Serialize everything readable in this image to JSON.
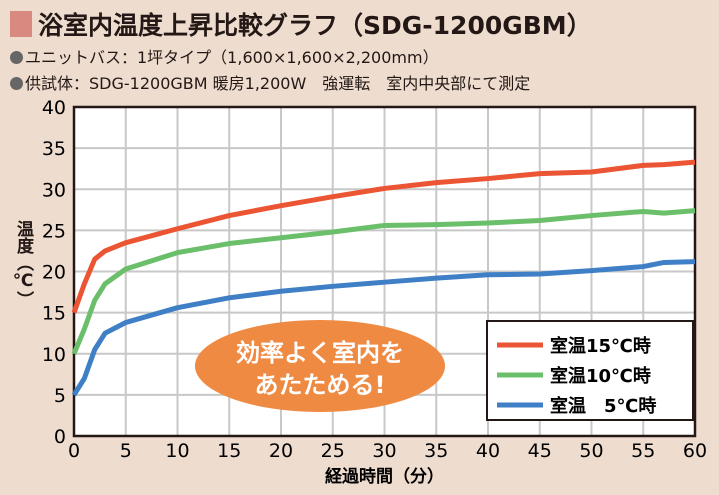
{
  "header": {
    "title": "浴室内温度上昇比較グラフ（SDG-1200GBM）",
    "specs": [
      "ユニットバス：1坪タイプ（1,600×1,600×2,200mm）",
      "供試体：SDG-1200GBM 暖房1,200W　強運転　室内中央部にて測定"
    ]
  },
  "callout": {
    "line1": "効率よく室内を",
    "line2": "あたためる!",
    "color": "#ef8a43"
  },
  "chart_data": {
    "type": "line",
    "xlabel": "経過時間（分）",
    "ylabel": "温度（℃）",
    "xlim": [
      0,
      60
    ],
    "ylim": [
      0,
      40
    ],
    "grid": true,
    "legend": "bottom-right",
    "xticks": [
      0,
      5,
      10,
      15,
      20,
      25,
      30,
      35,
      40,
      45,
      50,
      55,
      60
    ],
    "yticks": [
      0,
      5,
      10,
      15,
      20,
      25,
      30,
      35,
      40
    ],
    "x": [
      0,
      1,
      2,
      3,
      5,
      10,
      15,
      20,
      25,
      30,
      35,
      40,
      45,
      50,
      55,
      57,
      60
    ],
    "series": [
      {
        "name": "室温15℃時",
        "color": "#eb5533",
        "values": [
          15,
          18.5,
          21.5,
          22.5,
          23.5,
          25.2,
          26.8,
          28,
          29.1,
          30.1,
          30.8,
          31.3,
          31.9,
          32.1,
          32.9,
          33,
          33.3
        ]
      },
      {
        "name": "室温10℃時",
        "color": "#6cbf6a",
        "values": [
          10,
          13,
          16.5,
          18.5,
          20.3,
          22.3,
          23.4,
          24.1,
          24.8,
          25.6,
          25.7,
          25.9,
          26.2,
          26.8,
          27.3,
          27.1,
          27.4
        ]
      },
      {
        "name": "室温　5℃時",
        "color": "#3f7fc6",
        "values": [
          5,
          7,
          10.5,
          12.5,
          13.8,
          15.6,
          16.8,
          17.6,
          18.2,
          18.7,
          19.2,
          19.6,
          19.7,
          20.1,
          20.6,
          21.1,
          21.2
        ]
      }
    ]
  }
}
